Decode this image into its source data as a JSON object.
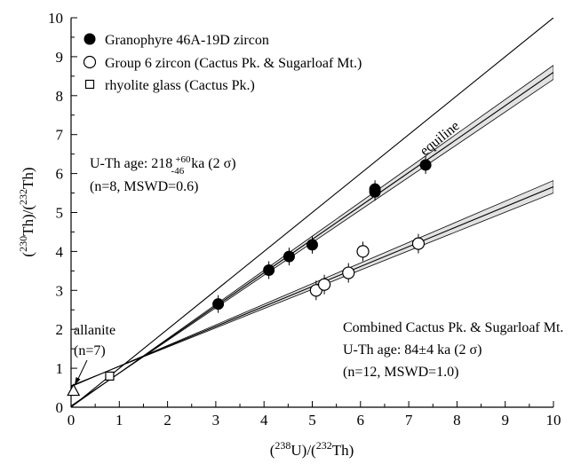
{
  "chart_data": {
    "type": "scatter",
    "xlim": [
      0,
      10
    ],
    "ylim": [
      0,
      10
    ],
    "xticks": [
      0,
      1,
      2,
      3,
      4,
      5,
      6,
      7,
      8,
      9,
      10
    ],
    "yticks": [
      0,
      1,
      2,
      3,
      4,
      5,
      6,
      7,
      8,
      9,
      10
    ],
    "xlabel": {
      "pre": "(",
      "sup1": "238",
      "mid": "U)/(",
      "sup2": "232",
      "post": "Th)"
    },
    "ylabel": {
      "pre": "(",
      "sup1": "230",
      "mid": "Th)/(",
      "sup2": "232",
      "post": "Th)"
    },
    "legend_position": "top-left",
    "series": [
      {
        "name": "Granophyre 46A-19D zircon",
        "marker": "filled-circle",
        "points": [
          [
            3.05,
            2.65
          ],
          [
            4.1,
            3.52
          ],
          [
            4.52,
            3.87
          ],
          [
            5.0,
            4.17
          ],
          [
            6.3,
            5.6
          ],
          [
            6.3,
            5.53
          ],
          [
            7.35,
            6.22
          ]
        ]
      },
      {
        "name": "Group 6 zircon (Cactus Pk. & Sugarloaf Mt.)",
        "marker": "open-circle",
        "points": [
          [
            5.08,
            3.0
          ],
          [
            5.25,
            3.15
          ],
          [
            5.75,
            3.45
          ],
          [
            6.05,
            4.0
          ],
          [
            7.2,
            4.2
          ]
        ]
      },
      {
        "name": "rhyolite glass (Cactus Pk.)",
        "marker": "open-square",
        "points": [
          [
            0.8,
            0.8
          ]
        ]
      }
    ],
    "extra_markers": [
      {
        "name": "allanite",
        "marker": "open-triangle",
        "points": [
          [
            0.05,
            0.42
          ]
        ]
      }
    ],
    "lines": [
      {
        "name": "equiline",
        "points": [
          [
            0,
            0
          ],
          [
            10,
            10
          ]
        ]
      },
      {
        "name": "granophyre isochron",
        "points": [
          [
            0,
            0.02
          ],
          [
            10,
            8.6
          ]
        ],
        "band_halfwidth_at_x10": 0.18
      },
      {
        "name": "combined isochron",
        "points": [
          [
            0,
            0.54
          ],
          [
            10,
            5.66
          ]
        ],
        "band_halfwidth_at_x10": 0.16
      }
    ],
    "annotations": {
      "equiline": "equiline",
      "age1_prefix": "U-Th age: 218",
      "age1_plus": "+60",
      "age1_minus": "-46",
      "age1_suffix": "ka (2 σ)",
      "age1_stats": "(n=8, MSWD=0.6)",
      "allanite_label": "allanite",
      "allanite_n": "(n=7)",
      "combined_title": "Combined Cactus Pk. & Sugarloaf Mt.",
      "combined_age": "U-Th age: 84±4 ka (2 σ)",
      "combined_stats": "(n=12, MSWD=1.0)"
    }
  }
}
